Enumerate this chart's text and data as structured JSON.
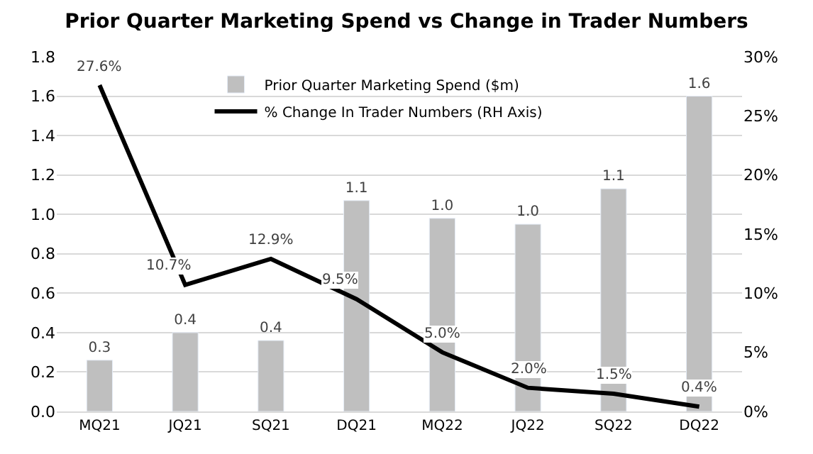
{
  "chart_data": {
    "type": "bar",
    "title": "Prior Quarter Marketing Spend vs Change in Trader Numbers",
    "categories": [
      "MQ21",
      "JQ21",
      "SQ21",
      "DQ21",
      "MQ22",
      "JQ22",
      "SQ22",
      "DQ22"
    ],
    "series": [
      {
        "name": "Prior Quarter Marketing Spend ($m)",
        "color": "#bfbfbf",
        "values": [
          0.26,
          0.4,
          0.36,
          1.07,
          0.98,
          0.95,
          1.13,
          1.6
        ],
        "value_labels": [
          "0.3",
          "0.4",
          "0.4",
          "1.1",
          "1.0",
          "1.0",
          "1.1",
          "1.6"
        ]
      },
      {
        "name": "% Change In Trader Numbers (RH Axis)",
        "type": "line",
        "axis": "y2",
        "color": "#000000",
        "values": [
          27.6,
          10.7,
          12.9,
          9.5,
          5.0,
          2.0,
          1.5,
          0.4
        ],
        "value_labels": [
          "27.6%",
          "10.7%",
          "12.9%",
          "9.5%",
          "5.0%",
          "2.0%",
          "1.5%",
          "0.4%"
        ]
      }
    ],
    "ylim": [
      0,
      1.8
    ],
    "yticks": [
      {
        "value": 0,
        "label": "0.0"
      },
      {
        "value": 0.2,
        "label": "0.2"
      },
      {
        "value": 0.4,
        "label": "0.4"
      },
      {
        "value": 0.6,
        "label": "0.6"
      },
      {
        "value": 0.8,
        "label": "0.8"
      },
      {
        "value": 1.0,
        "label": "1.0"
      },
      {
        "value": 1.2,
        "label": "1.2"
      },
      {
        "value": 1.4,
        "label": "1.4"
      },
      {
        "value": 1.6,
        "label": "1.6"
      },
      {
        "value": 1.8,
        "label": "1.8"
      }
    ],
    "y2lim": [
      0,
      30
    ],
    "y2ticks": [
      {
        "value": 0,
        "label": "0%"
      },
      {
        "value": 5,
        "label": "5%"
      },
      {
        "value": 10,
        "label": "10%"
      },
      {
        "value": 15,
        "label": "15%"
      },
      {
        "value": 20,
        "label": "20%"
      },
      {
        "value": 25,
        "label": "25%"
      },
      {
        "value": 30,
        "label": "30%"
      }
    ],
    "grid": "y",
    "legend": "top",
    "marker": "none",
    "line_style": "solid"
  }
}
